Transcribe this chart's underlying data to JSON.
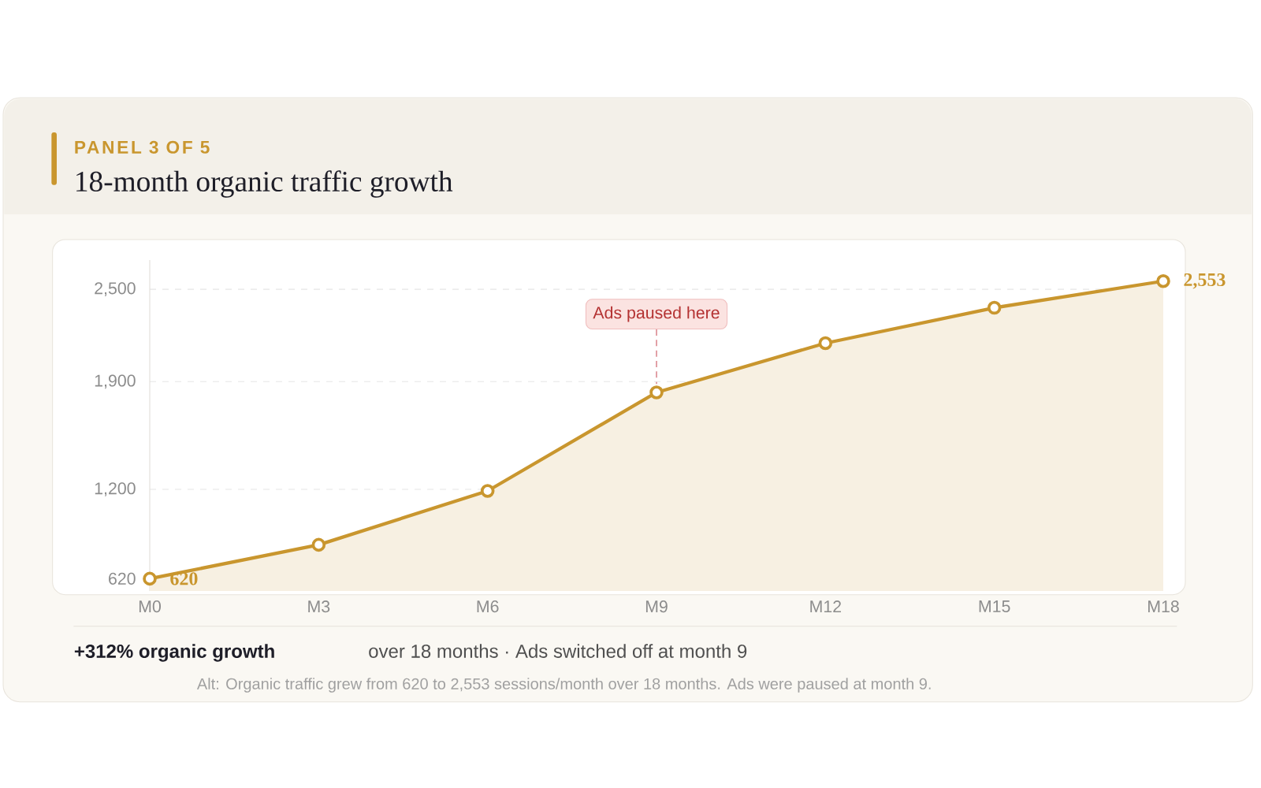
{
  "chart_data": {
    "type": "area",
    "title": "18-month organic traffic growth",
    "subtitle": "PANEL 3 OF 5",
    "categories": [
      "M0",
      "M3",
      "M6",
      "M9",
      "M12",
      "M15",
      "M18"
    ],
    "series": [
      {
        "color": "#c9962e",
        "values": [
          620,
          840,
          1190,
          1830,
          2150,
          2380,
          2553
        ],
        "value_labels": [
          "620",
          null,
          null,
          null,
          null,
          null,
          "2,553"
        ]
      }
    ],
    "ylim": [
      540,
      2690
    ],
    "yticks": [
      620,
      {
        "value": 1200,
        "label": "1,200"
      },
      {
        "value": 1900,
        "label": "1,900"
      },
      {
        "value": 2500,
        "label": "2,500"
      }
    ],
    "grid": "y",
    "marker": "circle",
    "line_style": "solid",
    "annotations": [
      {
        "text": "Ads paused here",
        "x": "M9",
        "y": 1830
      },
      "**+312% organic growth**",
      "over 18 months · Ads switched off at month 9",
      "Alt: Organic traffic grew from 620 to 2,553 sessions/month over 18 months. Ads were paused at month 9."
    ]
  }
}
